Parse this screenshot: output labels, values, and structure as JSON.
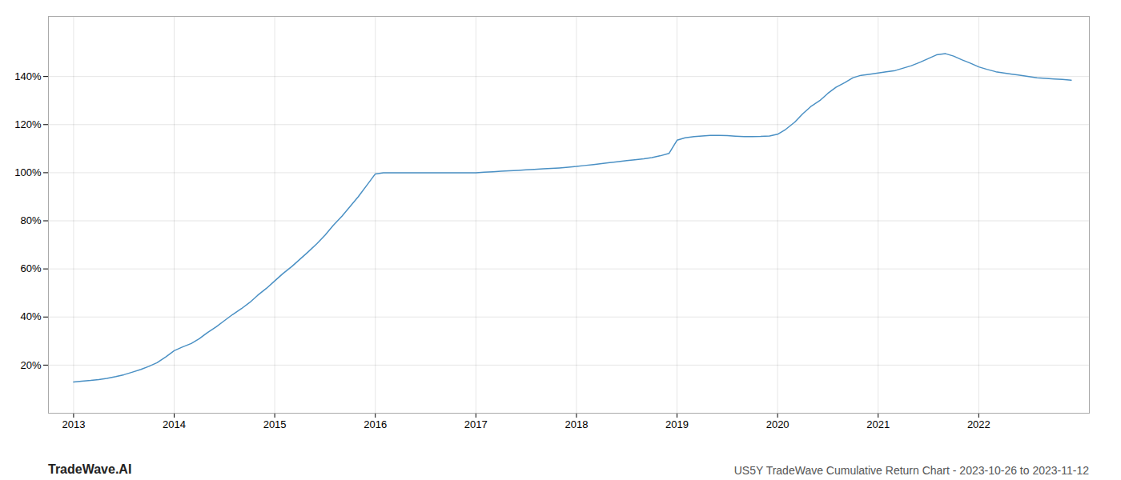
{
  "chart_data": {
    "type": "line",
    "title": "US5Y TradeWave Cumulative Return Chart - 2023-10-26 to 2023-11-12",
    "annotations": [
      "TradeWave.AI"
    ],
    "color": "#4a90c4",
    "grid": true,
    "x": [
      2013.0,
      2013.08,
      2013.17,
      2013.25,
      2013.33,
      2013.42,
      2013.5,
      2013.58,
      2013.67,
      2013.75,
      2013.83,
      2013.92,
      2014.0,
      2014.08,
      2014.17,
      2014.25,
      2014.33,
      2014.42,
      2014.5,
      2014.58,
      2014.67,
      2014.75,
      2014.83,
      2014.92,
      2015.0,
      2015.08,
      2015.17,
      2015.25,
      2015.33,
      2015.42,
      2015.5,
      2015.58,
      2015.67,
      2015.75,
      2015.83,
      2015.92,
      2016.0,
      2016.08,
      2016.17,
      2016.25,
      2016.33,
      2016.42,
      2016.5,
      2016.58,
      2016.67,
      2016.75,
      2016.83,
      2016.92,
      2017.0,
      2017.08,
      2017.17,
      2017.25,
      2017.33,
      2017.42,
      2017.5,
      2017.58,
      2017.67,
      2017.75,
      2017.83,
      2017.92,
      2018.0,
      2018.08,
      2018.17,
      2018.25,
      2018.33,
      2018.42,
      2018.5,
      2018.58,
      2018.67,
      2018.75,
      2018.83,
      2018.92,
      2019.0,
      2019.08,
      2019.17,
      2019.25,
      2019.33,
      2019.42,
      2019.5,
      2019.58,
      2019.67,
      2019.75,
      2019.83,
      2019.92,
      2020.0,
      2020.08,
      2020.17,
      2020.25,
      2020.33,
      2020.42,
      2020.5,
      2020.58,
      2020.67,
      2020.75,
      2020.83,
      2020.92,
      2021.0,
      2021.08,
      2021.17,
      2021.25,
      2021.33,
      2021.42,
      2021.5,
      2021.58,
      2021.67,
      2021.75,
      2021.83,
      2021.92,
      2022.0,
      2022.08,
      2022.17,
      2022.25,
      2022.33,
      2022.42,
      2022.5,
      2022.58,
      2022.67,
      2022.75,
      2022.83,
      2022.92
    ],
    "values": [
      13.0,
      13.3,
      13.6,
      14.0,
      14.5,
      15.2,
      16.0,
      17.0,
      18.2,
      19.5,
      21.0,
      23.5,
      26.0,
      27.5,
      29.0,
      31.0,
      33.5,
      36.0,
      38.5,
      41.0,
      43.5,
      46.0,
      49.0,
      52.0,
      55.0,
      58.0,
      61.0,
      64.0,
      67.0,
      70.5,
      74.0,
      78.0,
      82.0,
      86.0,
      90.0,
      95.0,
      99.5,
      100.0,
      100.0,
      100.0,
      100.0,
      100.0,
      100.0,
      100.0,
      100.0,
      100.0,
      100.0,
      100.0,
      100.0,
      100.2,
      100.4,
      100.6,
      100.8,
      101.0,
      101.2,
      101.4,
      101.6,
      101.8,
      102.0,
      102.3,
      102.6,
      103.0,
      103.4,
      103.8,
      104.2,
      104.6,
      105.0,
      105.4,
      105.8,
      106.3,
      107.0,
      108.0,
      113.5,
      114.5,
      115.0,
      115.3,
      115.5,
      115.5,
      115.4,
      115.2,
      115.0,
      115.0,
      115.1,
      115.3,
      116.0,
      118.0,
      121.0,
      124.5,
      127.5,
      130.0,
      133.0,
      135.5,
      137.5,
      139.5,
      140.5,
      141.0,
      141.5,
      142.0,
      142.5,
      143.5,
      144.5,
      146.0,
      147.5,
      149.0,
      149.5,
      148.5,
      147.0,
      145.5,
      144.0,
      143.0,
      142.0,
      141.5,
      141.0,
      140.5,
      140.0,
      139.5,
      139.2,
      139.0,
      138.8,
      138.5
    ],
    "xlim": [
      2012.75,
      2023.1
    ],
    "xticks": [
      2013,
      2014,
      2015,
      2016,
      2017,
      2018,
      2019,
      2020,
      2021,
      2022
    ],
    "ylim": [
      0,
      165
    ],
    "yticks": [
      {
        "value": 20,
        "label": "20%"
      },
      {
        "value": 40,
        "label": "40%"
      },
      {
        "value": 60,
        "label": "60%"
      },
      {
        "value": 80,
        "label": "80%"
      },
      {
        "value": 100,
        "label": "100%"
      },
      {
        "value": 120,
        "label": "120%"
      },
      {
        "value": 140,
        "label": "140%"
      }
    ]
  }
}
